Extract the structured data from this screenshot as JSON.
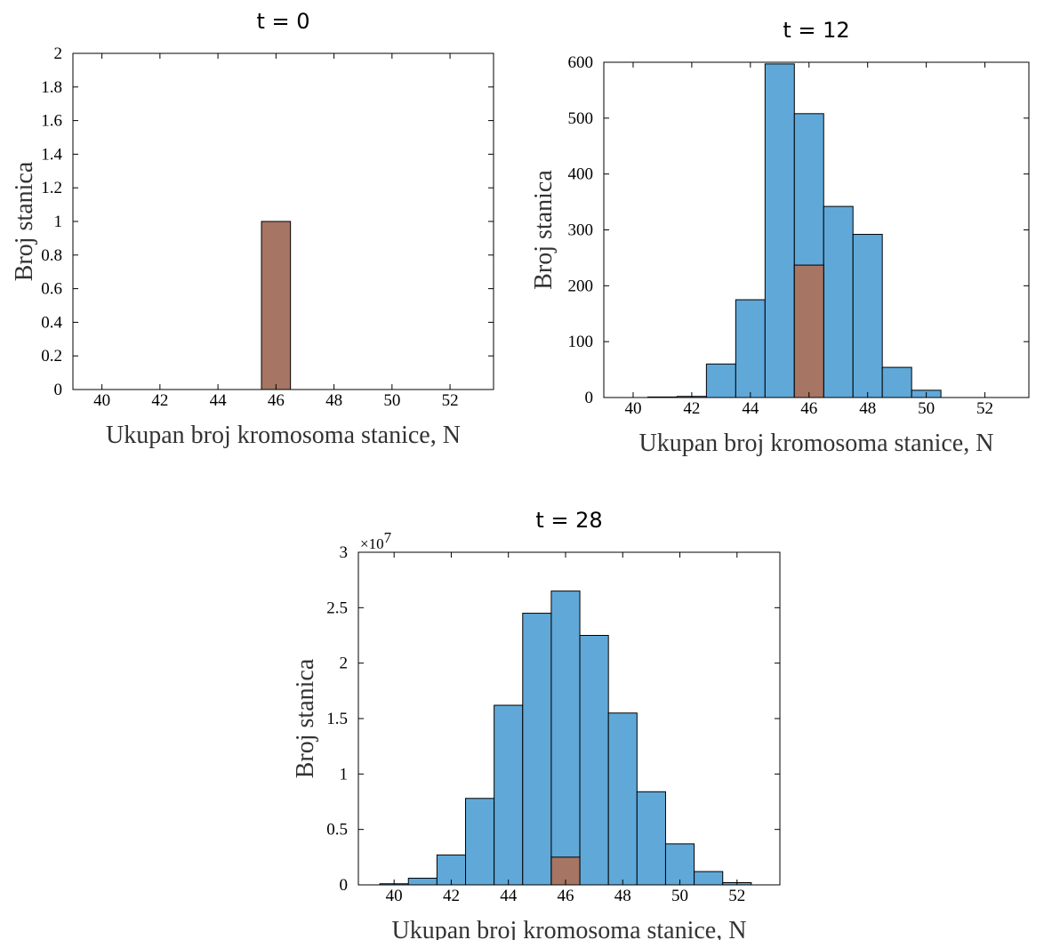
{
  "colors": {
    "total": "#60a8d8",
    "euploid": "#a67563"
  },
  "chart_data": [
    {
      "type": "bar",
      "title": "t = 0",
      "xlabel": "Ukupan broj kromosoma stanice, N",
      "ylabel": "Broj stanica",
      "xlim": [
        39,
        53.5
      ],
      "ylim": [
        0,
        2
      ],
      "xticks": [
        40,
        42,
        44,
        46,
        48,
        50,
        52
      ],
      "yticks": [
        0,
        0.2,
        0.4,
        0.6,
        0.8,
        1,
        1.2,
        1.4,
        1.6,
        1.8,
        2
      ],
      "ytick_labels": [
        "0",
        "0.2",
        "0.4",
        "0.6",
        "0.8",
        "1",
        "1.2",
        "1.4",
        "1.6",
        "1.8",
        "2"
      ],
      "multiplier": "",
      "categories": [
        46
      ],
      "series": [
        {
          "values": [
            0
          ],
          "color": "#60a8d8"
        },
        {
          "values": [
            1
          ],
          "color": "#a67563"
        }
      ]
    },
    {
      "type": "bar",
      "title": "t = 12",
      "xlabel": "Ukupan broj kromosoma stanice, N",
      "ylabel": "Broj stanica",
      "xlim": [
        39,
        53.5
      ],
      "ylim": [
        0,
        600
      ],
      "xticks": [
        40,
        42,
        44,
        46,
        48,
        50,
        52
      ],
      "yticks": [
        0,
        100,
        200,
        300,
        400,
        500,
        600
      ],
      "ytick_labels": [
        "0",
        "100",
        "200",
        "300",
        "400",
        "500",
        "600"
      ],
      "multiplier": "",
      "categories": [
        40,
        41,
        42,
        43,
        44,
        45,
        46,
        47,
        48,
        49,
        50,
        51,
        52
      ],
      "series": [
        {
          "values": [
            0,
            1,
            2,
            60,
            175,
            597,
            508,
            342,
            292,
            54,
            13,
            0,
            0
          ],
          "color": "#60a8d8"
        },
        {
          "values": [
            0,
            0,
            0,
            0,
            0,
            0,
            237,
            0,
            0,
            0,
            0,
            0,
            0
          ],
          "color": "#a67563"
        }
      ]
    },
    {
      "type": "bar",
      "title": "t = 28",
      "xlabel": "Ukupan broj kromosoma stanice, N",
      "ylabel": "Broj stanica",
      "xlim": [
        38.75,
        53.5
      ],
      "ylim": [
        0,
        3
      ],
      "xticks": [
        40,
        42,
        44,
        46,
        48,
        50,
        52
      ],
      "yticks": [
        0,
        0.5,
        1,
        1.5,
        2,
        2.5,
        3
      ],
      "ytick_labels": [
        "0",
        "0.5",
        "1",
        "1.5",
        "2",
        "2.5",
        "3"
      ],
      "multiplier": "×10",
      "multiplier_exp": "7",
      "categories": [
        40,
        41,
        42,
        43,
        44,
        45,
        46,
        47,
        48,
        49,
        50,
        51,
        52
      ],
      "series": [
        {
          "values": [
            0.01,
            0.06,
            0.27,
            0.78,
            1.62,
            2.45,
            2.65,
            2.25,
            1.55,
            0.84,
            0.37,
            0.12,
            0.02
          ],
          "color": "#60a8d8"
        },
        {
          "values": [
            0,
            0,
            0,
            0,
            0,
            0,
            0.25,
            0,
            0,
            0,
            0,
            0,
            0
          ],
          "color": "#a67563"
        }
      ]
    }
  ]
}
